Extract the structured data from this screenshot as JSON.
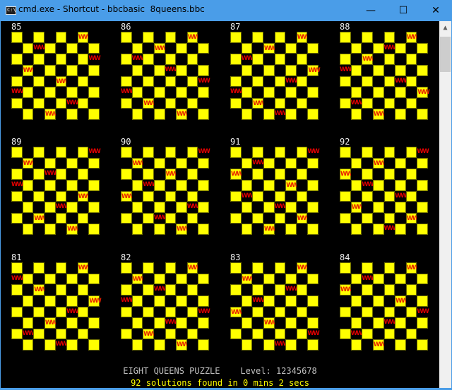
{
  "window": {
    "title": "cmd.exe - Shortcut - bbcbasic  8queens.bbc",
    "icon": "cmd-icon",
    "icon_text": "C:\\",
    "minimize": "—",
    "maximize": "☐",
    "close": "✕"
  },
  "colors": {
    "light_square": "#ffff00",
    "dark_square": "#000000",
    "queen": "#e00000",
    "status_line": "#ffff00",
    "titlebar": "#4a9de8"
  },
  "queen_glyph": "WW",
  "boards": [
    {
      "label": "85",
      "queens": [
        6,
        2,
        7,
        1,
        4,
        0,
        5,
        3
      ]
    },
    {
      "label": "86",
      "queens": [
        6,
        3,
        1,
        4,
        7,
        0,
        2,
        5
      ]
    },
    {
      "label": "87",
      "queens": [
        6,
        3,
        1,
        7,
        5,
        0,
        2,
        4
      ]
    },
    {
      "label": "88",
      "queens": [
        6,
        4,
        2,
        0,
        5,
        7,
        1,
        3
      ]
    },
    {
      "label": "89",
      "queens": [
        7,
        1,
        3,
        0,
        6,
        4,
        2,
        5
      ]
    },
    {
      "label": "90",
      "queens": [
        7,
        1,
        4,
        2,
        0,
        6,
        3,
        5
      ]
    },
    {
      "label": "91",
      "queens": [
        7,
        2,
        0,
        5,
        1,
        4,
        6,
        3
      ]
    },
    {
      "label": "92",
      "queens": [
        7,
        3,
        0,
        2,
        5,
        1,
        6,
        4
      ]
    },
    {
      "label": "81",
      "queens": [
        6,
        0,
        2,
        7,
        5,
        3,
        1,
        4
      ]
    },
    {
      "label": "82",
      "queens": [
        6,
        1,
        3,
        0,
        7,
        4,
        2,
        5
      ]
    },
    {
      "label": "83",
      "queens": [
        6,
        1,
        5,
        2,
        0,
        3,
        7,
        4
      ]
    },
    {
      "label": "84",
      "queens": [
        6,
        2,
        0,
        5,
        7,
        4,
        1,
        3
      ]
    }
  ],
  "status": {
    "heading": "EIGHT QUEENS PUZZLE    Level: 12345678",
    "result": "92 solutions found in 0 mins 2 secs"
  }
}
